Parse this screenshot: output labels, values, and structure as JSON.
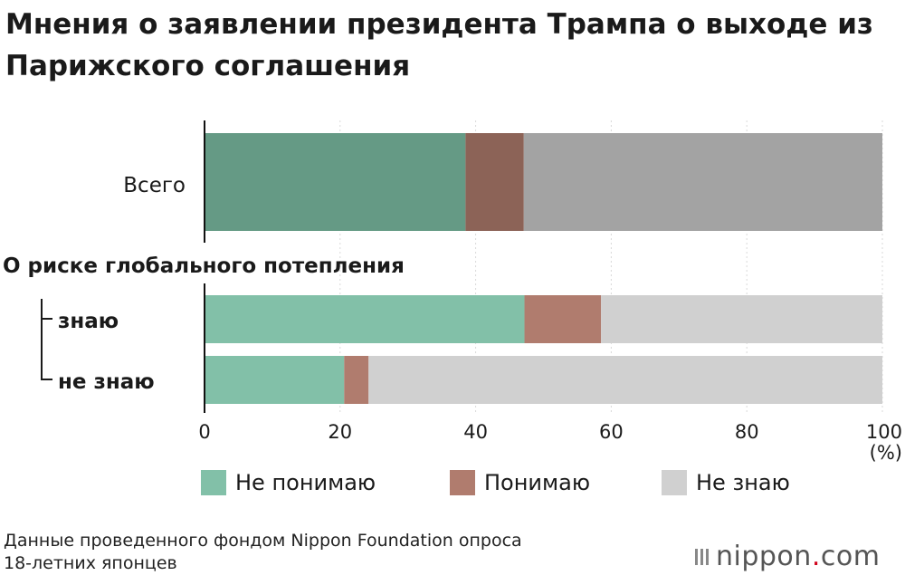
{
  "title": "Мнения о заявлении президента Трампа о выходе из Парижского соглашения",
  "chart_data": {
    "type": "bar",
    "orientation": "horizontal",
    "stacked": true,
    "group_label": "О риске глобального потепления",
    "categories": [
      "Всего",
      "знаю",
      "не знаю"
    ],
    "series": [
      {
        "name": "Не понимаю",
        "values": [
          38.5,
          47.2,
          20.6
        ],
        "colors": [
          "#659a85",
          "#82c0a8",
          "#82c0a8"
        ]
      },
      {
        "name": "Понимаю",
        "values": [
          8.6,
          11.3,
          3.6
        ],
        "colors": [
          "#8c6357",
          "#b07c6e",
          "#b07c6e"
        ]
      },
      {
        "name": "Не знаю",
        "values": [
          52.9,
          41.5,
          75.8
        ],
        "colors": [
          "#a3a3a3",
          "#d0d0d0",
          "#d0d0d0"
        ]
      }
    ],
    "xlim": [
      0,
      100
    ],
    "xticks": [
      0,
      20,
      40,
      60,
      80,
      100
    ],
    "xticklabels": [
      "0",
      "20",
      "40",
      "60",
      "80",
      "100"
    ],
    "unit_label": "(%)",
    "grid": true
  },
  "legend": [
    {
      "label": "Не понимаю",
      "color": "#82c0a8"
    },
    {
      "label": "Понимаю",
      "color": "#b07c6e"
    },
    {
      "label": "Не знаю",
      "color": "#d0d0d0"
    }
  ],
  "note_lines": [
    "Данные проведенного фондом Nippon Foundation опроса",
    "18-летних японцев"
  ],
  "brand": {
    "name": "nippon",
    "dot": ".",
    "tld": "com"
  }
}
